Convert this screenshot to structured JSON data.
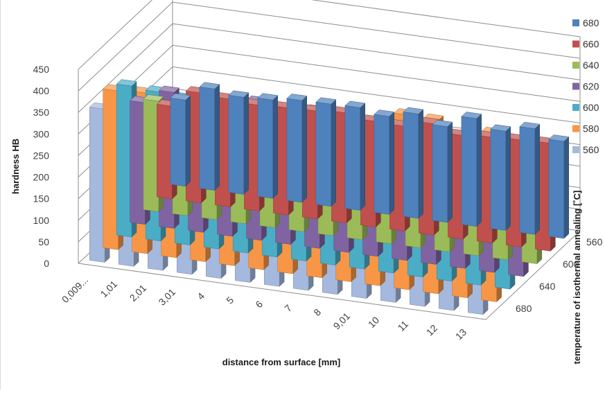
{
  "chart_data": {
    "type": "bar",
    "subtype": "3d-column",
    "title": "",
    "ylabel": "hardness HB",
    "xlabel": "distance from surface [mm]",
    "zlabel": "temperature of isothermal annealing [˚C]",
    "ylim": [
      0,
      450
    ],
    "yticks": [
      "0",
      "50",
      "100",
      "150",
      "200",
      "250",
      "300",
      "350",
      "400",
      "450"
    ],
    "categories": [
      "0,009...",
      "1,01",
      "2,01",
      "3,01",
      "4",
      "5",
      "6",
      "7",
      "8",
      "9,01",
      "10",
      "11",
      "12",
      "13"
    ],
    "depth_labels": [
      "560",
      "600",
      "640",
      "680"
    ],
    "legend_position": "right",
    "grid": true,
    "series": [
      {
        "name": "680",
        "color": "#4f81bd",
        "values": [
          200,
          235,
          225,
          228,
          236,
          237,
          238,
          227,
          242,
          222,
          250,
          230,
          245,
          225
        ]
      },
      {
        "name": "660",
        "color": "#c0504d",
        "values": [
          215,
          255,
          250,
          245,
          248,
          250,
          255,
          245,
          243,
          258,
          240,
          245,
          248,
          250
        ]
      },
      {
        "name": "640",
        "color": "#9bbb59",
        "values": [
          256,
          247,
          252,
          255,
          250,
          258,
          255,
          246,
          260,
          258,
          255,
          260,
          262,
          260
        ]
      },
      {
        "name": "620",
        "color": "#8064a2",
        "values": [
          282,
          315,
          310,
          300,
          320,
          315,
          318,
          310,
          295,
          310,
          318,
          305,
          310,
          310
        ]
      },
      {
        "name": "600",
        "color": "#4bacc6",
        "values": [
          350,
          345,
          338,
          338,
          338,
          340,
          338,
          342,
          335,
          335,
          340,
          340,
          318,
          330
        ]
      },
      {
        "name": "580",
        "color": "#f79646",
        "values": [
          368,
          372,
          360,
          348,
          368,
          368,
          358,
          365,
          362,
          352,
          405,
          402,
          335,
          390
        ]
      },
      {
        "name": "560",
        "color": "#a5b8dd",
        "values": [
          355,
          350,
          350,
          350,
          350,
          355,
          360,
          380,
          345,
          350,
          385,
          395,
          390,
          360
        ]
      }
    ]
  }
}
